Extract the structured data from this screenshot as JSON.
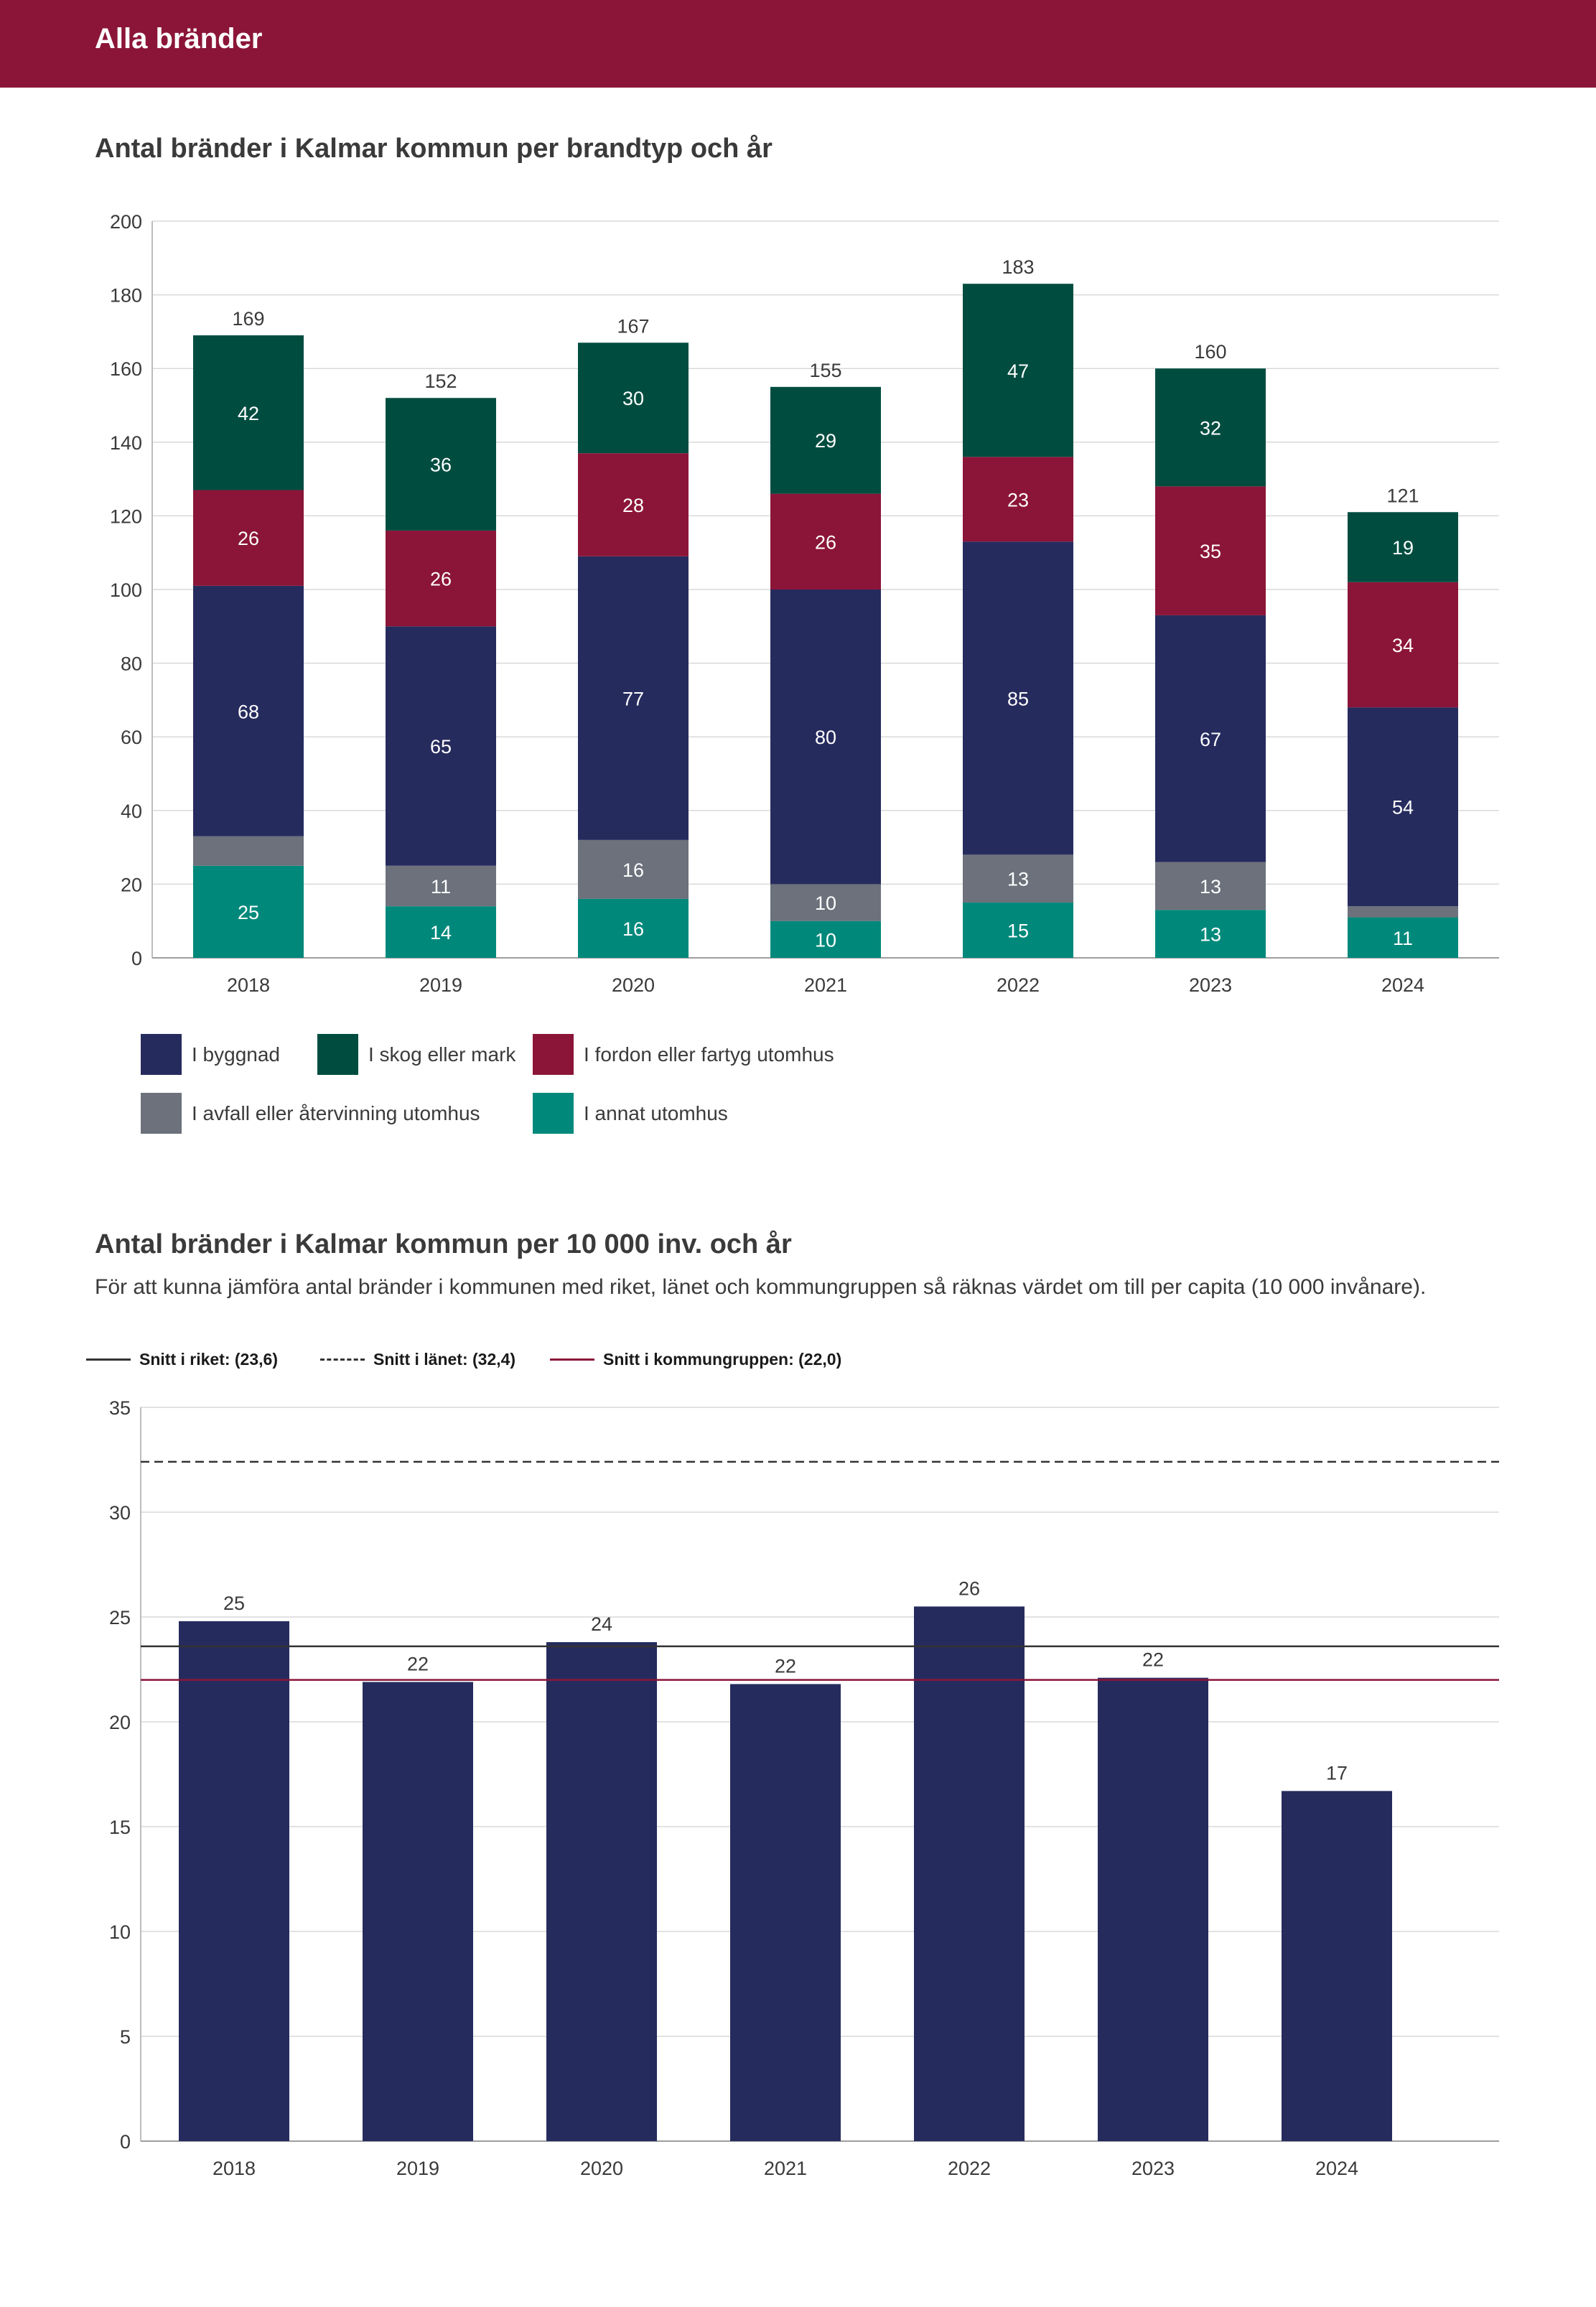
{
  "header": {
    "title": "Alla bränder"
  },
  "colors": {
    "header_bg": "#8b1538",
    "byggnad": "#262b5e",
    "skog": "#004d40",
    "fordon": "#8b1538",
    "avfall": "#6c717b",
    "annat": "#00897b",
    "per_capita_bar": "#262b5e",
    "riket_line": "#333333",
    "lanet_line": "#333333",
    "kommungrupp_line": "#8b1538"
  },
  "chart1": {
    "title": "Antal bränder i Kalmar kommun per brandtyp och år",
    "legend": [
      {
        "key": "byggnad",
        "label": "I byggnad"
      },
      {
        "key": "skog",
        "label": "I skog eller mark"
      },
      {
        "key": "fordon",
        "label": "I fordon eller fartyg utomhus"
      },
      {
        "key": "avfall",
        "label": "I avfall eller återvinning utomhus"
      },
      {
        "key": "annat",
        "label": "I annat utomhus"
      }
    ]
  },
  "chart2": {
    "title": "Antal bränder i Kalmar kommun per 10 000 inv. och år",
    "description": "För att kunna jämföra antal bränder i kommunen med riket, länet och kommungruppen så räknas värdet om till per capita (10 000 invånare).",
    "legend": [
      {
        "key": "riket",
        "label": "Snitt i riket: (23,6)",
        "style": "solid"
      },
      {
        "key": "lanet",
        "label": "Snitt i länet: (32,4)",
        "style": "dashed"
      },
      {
        "key": "kommungrupp",
        "label": "Snitt i kommungruppen: (22,0)",
        "style": "solid-red"
      }
    ]
  },
  "chart_data": [
    {
      "type": "bar",
      "stacked": true,
      "title": "Antal bränder i Kalmar kommun per brandtyp och år",
      "categories": [
        "2018",
        "2019",
        "2020",
        "2021",
        "2022",
        "2023",
        "2024"
      ],
      "ylim": [
        0,
        200
      ],
      "yticks": [
        0,
        20,
        40,
        60,
        80,
        100,
        120,
        140,
        160,
        180,
        200
      ],
      "grid": true,
      "legend_position": "bottom",
      "series": [
        {
          "name": "I annat utomhus",
          "key": "annat",
          "values": [
            25,
            14,
            16,
            10,
            15,
            13,
            11
          ],
          "labels": [
            "25",
            "14",
            "16",
            "10",
            "15",
            "13",
            "11"
          ]
        },
        {
          "name": "I avfall eller återvinning utomhus",
          "key": "avfall",
          "values": [
            8,
            11,
            16,
            10,
            13,
            13,
            3
          ],
          "labels": [
            "",
            "11",
            "16",
            "10",
            "13",
            "13",
            ""
          ]
        },
        {
          "name": "I byggnad",
          "key": "byggnad",
          "values": [
            68,
            65,
            77,
            80,
            85,
            67,
            54
          ],
          "labels": [
            "68",
            "65",
            "77",
            "80",
            "85",
            "67",
            "54"
          ]
        },
        {
          "name": "I fordon eller fartyg utomhus",
          "key": "fordon",
          "values": [
            26,
            26,
            28,
            26,
            23,
            35,
            34
          ],
          "labels": [
            "26",
            "26",
            "28",
            "26",
            "23",
            "35",
            "34"
          ]
        },
        {
          "name": "I skog eller mark",
          "key": "skog",
          "values": [
            42,
            36,
            30,
            29,
            47,
            32,
            19
          ],
          "labels": [
            "42",
            "36",
            "30",
            "29",
            "47",
            "32",
            "19"
          ]
        }
      ],
      "totals": [
        169,
        152,
        167,
        155,
        183,
        160,
        121
      ]
    },
    {
      "type": "bar",
      "title": "Antal bränder i Kalmar kommun per 10 000 inv. och år",
      "categories": [
        "2018",
        "2019",
        "2020",
        "2021",
        "2022",
        "2023",
        "2024"
      ],
      "values": [
        24.8,
        21.9,
        23.8,
        21.8,
        25.5,
        22.1,
        16.7
      ],
      "value_labels": [
        "25",
        "22",
        "24",
        "22",
        "26",
        "22",
        "17"
      ],
      "ylim": [
        0,
        35
      ],
      "yticks": [
        0,
        5,
        10,
        15,
        20,
        25,
        30,
        35
      ],
      "grid": true,
      "legend_position": "top",
      "reference_lines": [
        {
          "key": "riket",
          "value": 23.6,
          "style": "solid"
        },
        {
          "key": "lanet",
          "value": 32.4,
          "style": "dashed"
        },
        {
          "key": "kommungrupp",
          "value": 22.0,
          "style": "solid-red"
        }
      ]
    }
  ]
}
